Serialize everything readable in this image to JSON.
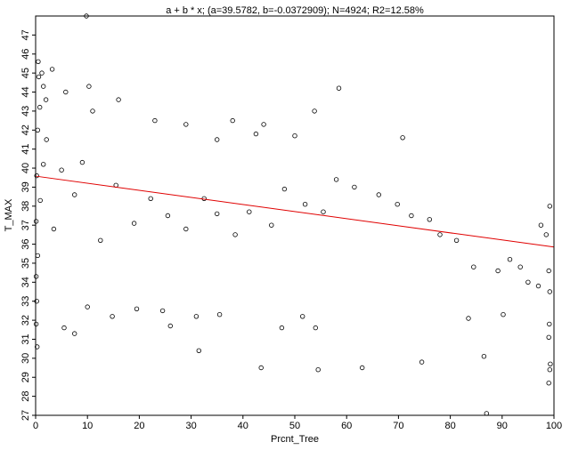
{
  "chart_data": {
    "type": "scatter",
    "title": "a + b * x; (a=39.5782, b=-0.0372909); N=4924; R2=12.58%",
    "xlabel": "Prcnt_Tree",
    "ylabel": "T_MAX",
    "xlim": [
      0,
      100
    ],
    "ylim": [
      27,
      48
    ],
    "x_ticks": [
      0,
      10,
      20,
      30,
      40,
      50,
      60,
      70,
      80,
      90,
      100
    ],
    "y_ticks": [
      27,
      28,
      29,
      30,
      31,
      32,
      33,
      34,
      35,
      36,
      37,
      38,
      39,
      40,
      41,
      42,
      43,
      44,
      45,
      46,
      47
    ],
    "grid": false,
    "legend": "none",
    "fit": {
      "a": 39.5782,
      "b": -0.0372909,
      "color": "#e00000"
    },
    "point_color": "#000000",
    "n_points": 4924,
    "series": [
      {
        "points": [
          [
            9.8,
            48.0
          ],
          [
            0.5,
            45.6
          ],
          [
            0.6,
            44.8
          ],
          [
            1.2,
            45.0
          ],
          [
            3.2,
            45.2
          ],
          [
            1.5,
            44.3
          ],
          [
            0.8,
            43.2
          ],
          [
            2.0,
            43.6
          ],
          [
            5.8,
            44.0
          ],
          [
            10.3,
            44.3
          ],
          [
            16.0,
            43.6
          ],
          [
            11.0,
            43.0
          ],
          [
            23.0,
            42.5
          ],
          [
            29.0,
            42.3
          ],
          [
            38.0,
            42.5
          ],
          [
            44.0,
            42.3
          ],
          [
            53.8,
            43.0
          ],
          [
            70.8,
            41.6
          ],
          [
            58.5,
            44.2
          ],
          [
            42.5,
            41.8
          ],
          [
            35.0,
            41.5
          ],
          [
            50.0,
            41.7
          ],
          [
            0.1,
            31.8
          ],
          [
            0.3,
            30.6
          ],
          [
            0.2,
            33.0
          ],
          [
            0.1,
            34.3
          ],
          [
            0.4,
            35.4
          ],
          [
            5.5,
            31.6
          ],
          [
            7.5,
            31.3
          ],
          [
            10.0,
            32.7
          ],
          [
            14.8,
            32.2
          ],
          [
            19.5,
            32.6
          ],
          [
            24.5,
            32.5
          ],
          [
            26.0,
            31.7
          ],
          [
            31.0,
            32.2
          ],
          [
            31.5,
            30.4
          ],
          [
            35.5,
            32.3
          ],
          [
            47.5,
            31.6
          ],
          [
            51.5,
            32.2
          ],
          [
            54.0,
            31.6
          ],
          [
            43.5,
            29.5
          ],
          [
            54.5,
            29.4
          ],
          [
            63.0,
            29.5
          ],
          [
            74.5,
            29.8
          ],
          [
            86.5,
            30.1
          ],
          [
            87.0,
            27.1
          ],
          [
            90.2,
            32.3
          ],
          [
            83.5,
            32.1
          ],
          [
            99.0,
            28.7
          ],
          [
            99.2,
            29.4
          ],
          [
            99.3,
            29.7
          ],
          [
            99.0,
            31.1
          ],
          [
            99.1,
            31.8
          ],
          [
            99.2,
            33.5
          ],
          [
            99.0,
            34.6
          ],
          [
            98.5,
            36.5
          ],
          [
            99.2,
            38.0
          ],
          [
            97.5,
            37.0
          ],
          [
            97.0,
            33.8
          ],
          [
            95.0,
            34.0
          ],
          [
            93.5,
            34.8
          ],
          [
            91.5,
            35.2
          ],
          [
            89.2,
            34.6
          ],
          [
            84.5,
            34.8
          ],
          [
            81.2,
            36.2
          ],
          [
            78.0,
            36.5
          ],
          [
            76.0,
            37.3
          ],
          [
            72.5,
            37.5
          ],
          [
            69.8,
            38.1
          ],
          [
            66.2,
            38.6
          ],
          [
            61.5,
            39.0
          ],
          [
            58.0,
            39.4
          ],
          [
            55.5,
            37.7
          ],
          [
            52.0,
            38.1
          ],
          [
            48.0,
            38.9
          ],
          [
            45.5,
            37.0
          ],
          [
            41.2,
            37.7
          ],
          [
            38.5,
            36.5
          ],
          [
            35.0,
            37.6
          ],
          [
            32.5,
            38.4
          ],
          [
            29.0,
            36.8
          ],
          [
            25.5,
            37.5
          ],
          [
            22.2,
            38.4
          ],
          [
            19.0,
            37.1
          ],
          [
            15.5,
            39.1
          ],
          [
            12.5,
            36.2
          ],
          [
            9.0,
            40.3
          ],
          [
            7.5,
            38.6
          ],
          [
            5.0,
            39.9
          ],
          [
            3.5,
            36.8
          ],
          [
            2.1,
            41.5
          ],
          [
            1.5,
            40.2
          ],
          [
            0.9,
            38.3
          ],
          [
            0.4,
            42.0
          ],
          [
            0.2,
            39.6
          ],
          [
            0.1,
            37.2
          ]
        ]
      }
    ]
  }
}
